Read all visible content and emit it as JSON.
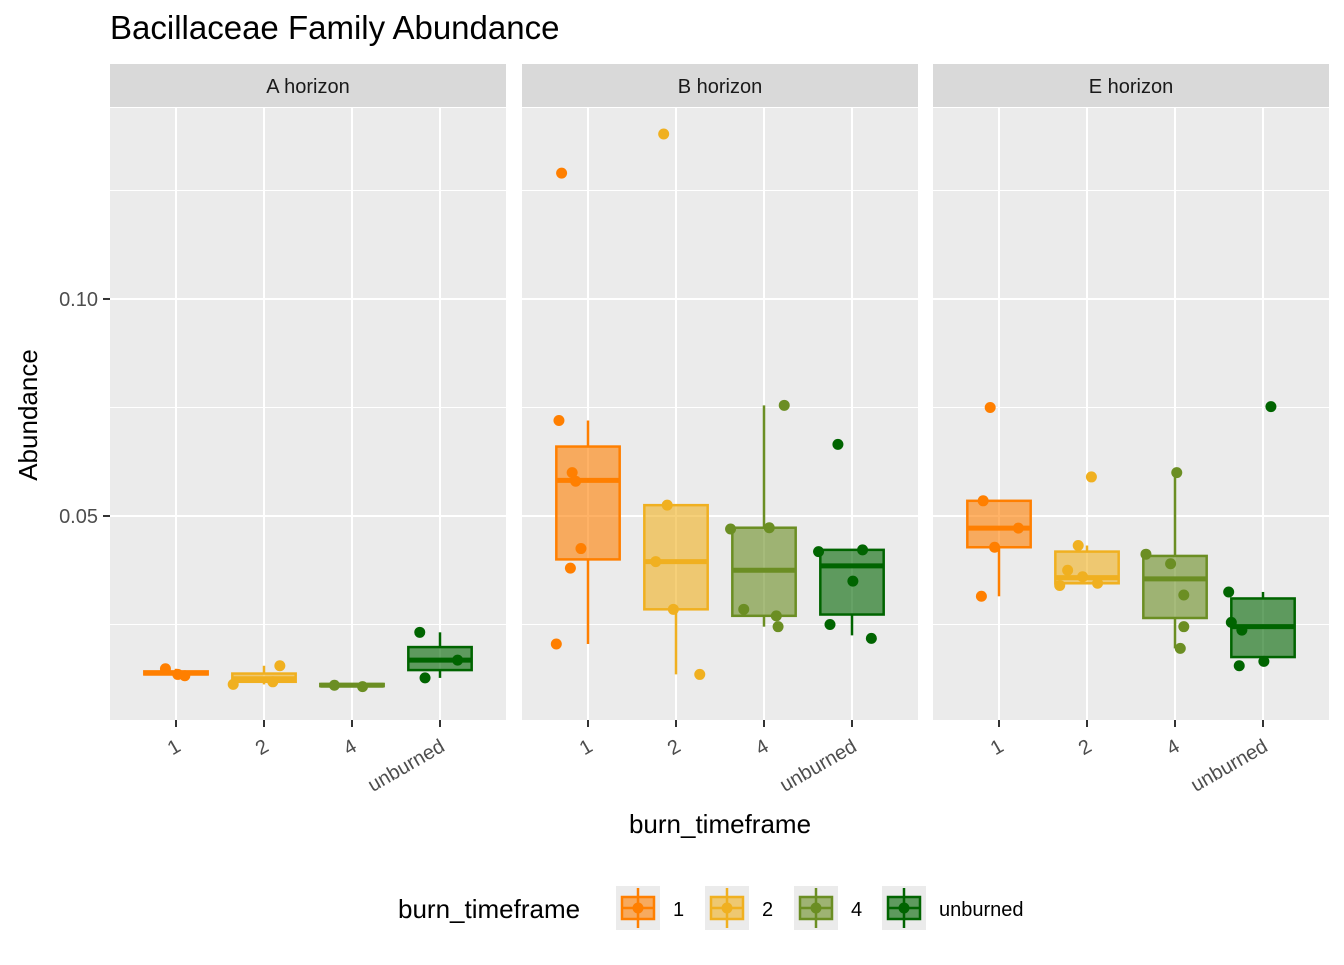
{
  "chart_data": {
    "type": "boxplot",
    "title": "Bacillaceae Family Abundance",
    "xlabel": "burn_timeframe",
    "ylabel": "Abundance",
    "ylim": [
      0.003,
      0.144
    ],
    "y_ticks": [
      0.05,
      0.1
    ],
    "y_tick_labels": [
      "0.05",
      "0.10"
    ],
    "categories": [
      "1",
      "2",
      "4",
      "unburned"
    ],
    "colors": {
      "1": "#ff7f00",
      "2": "#f0b020",
      "4": "#6b8e23",
      "unburned": "#006400"
    },
    "legend": {
      "title": "burn_timeframe",
      "position": "bottom",
      "entries": [
        "1",
        "2",
        "4",
        "unburned"
      ]
    },
    "grid": true,
    "panels": [
      {
        "name": "A horizon",
        "boxes": [
          {
            "category": "1",
            "q1": 0.0135,
            "median": 0.0138,
            "q3": 0.0142,
            "whisker_low": 0.013,
            "whisker_high": 0.0148
          },
          {
            "category": "2",
            "q1": 0.0118,
            "median": 0.0125,
            "q3": 0.0137,
            "whisker_low": 0.0112,
            "whisker_high": 0.0155
          },
          {
            "category": "4",
            "q1": 0.0108,
            "median": 0.011,
            "q3": 0.0113,
            "whisker_low": 0.0105,
            "whisker_high": 0.0115
          },
          {
            "category": "unburned",
            "q1": 0.0145,
            "median": 0.0168,
            "q3": 0.0198,
            "whisker_low": 0.0127,
            "whisker_high": 0.0232
          }
        ],
        "points": [
          {
            "category": "1",
            "y": 0.0148,
            "jitter": -0.12
          },
          {
            "category": "1",
            "y": 0.0135,
            "jitter": 0.02
          },
          {
            "category": "1",
            "y": 0.0132,
            "jitter": 0.1
          },
          {
            "category": "2",
            "y": 0.0112,
            "jitter": -0.35
          },
          {
            "category": "2",
            "y": 0.0118,
            "jitter": 0.1
          },
          {
            "category": "2",
            "y": 0.0155,
            "jitter": 0.18
          },
          {
            "category": "4",
            "y": 0.011,
            "jitter": -0.2
          },
          {
            "category": "4",
            "y": 0.0107,
            "jitter": 0.12
          },
          {
            "category": "unburned",
            "y": 0.0232,
            "jitter": -0.23
          },
          {
            "category": "unburned",
            "y": 0.0127,
            "jitter": -0.17
          },
          {
            "category": "unburned",
            "y": 0.0168,
            "jitter": 0.2
          }
        ]
      },
      {
        "name": "B horizon",
        "boxes": [
          {
            "category": "1",
            "q1": 0.04,
            "median": 0.0582,
            "q3": 0.066,
            "whisker_low": 0.0205,
            "whisker_high": 0.072
          },
          {
            "category": "2",
            "q1": 0.0285,
            "median": 0.0395,
            "q3": 0.0525,
            "whisker_low": 0.0135,
            "whisker_high": 0.0525
          },
          {
            "category": "4",
            "q1": 0.027,
            "median": 0.0375,
            "q3": 0.0473,
            "whisker_low": 0.0245,
            "whisker_high": 0.0755
          },
          {
            "category": "unburned",
            "q1": 0.0273,
            "median": 0.0385,
            "q3": 0.0422,
            "whisker_low": 0.0225,
            "whisker_high": 0.0422
          }
        ],
        "points": [
          {
            "category": "1",
            "y": 0.129,
            "jitter": -0.3
          },
          {
            "category": "1",
            "y": 0.072,
            "jitter": -0.33
          },
          {
            "category": "1",
            "y": 0.06,
            "jitter": -0.18
          },
          {
            "category": "1",
            "y": 0.058,
            "jitter": -0.14
          },
          {
            "category": "1",
            "y": 0.0425,
            "jitter": -0.08
          },
          {
            "category": "1",
            "y": 0.038,
            "jitter": -0.2
          },
          {
            "category": "1",
            "y": 0.0205,
            "jitter": -0.36
          },
          {
            "category": "2",
            "y": 0.138,
            "jitter": -0.14
          },
          {
            "category": "2",
            "y": 0.0525,
            "jitter": -0.1
          },
          {
            "category": "2",
            "y": 0.0395,
            "jitter": -0.23
          },
          {
            "category": "2",
            "y": 0.0285,
            "jitter": -0.03
          },
          {
            "category": "2",
            "y": 0.0135,
            "jitter": 0.27
          },
          {
            "category": "4",
            "y": 0.0755,
            "jitter": 0.23
          },
          {
            "category": "4",
            "y": 0.047,
            "jitter": -0.38
          },
          {
            "category": "4",
            "y": 0.0473,
            "jitter": 0.06
          },
          {
            "category": "4",
            "y": 0.0285,
            "jitter": -0.23
          },
          {
            "category": "4",
            "y": 0.027,
            "jitter": 0.14
          },
          {
            "category": "4",
            "y": 0.0245,
            "jitter": 0.16
          },
          {
            "category": "unburned",
            "y": 0.0665,
            "jitter": -0.16
          },
          {
            "category": "unburned",
            "y": 0.0418,
            "jitter": -0.38
          },
          {
            "category": "unburned",
            "y": 0.0422,
            "jitter": 0.12
          },
          {
            "category": "unburned",
            "y": 0.035,
            "jitter": 0.01
          },
          {
            "category": "unburned",
            "y": 0.025,
            "jitter": -0.25
          },
          {
            "category": "unburned",
            "y": 0.0218,
            "jitter": 0.22
          }
        ]
      },
      {
        "name": "E horizon",
        "boxes": [
          {
            "category": "1",
            "q1": 0.0428,
            "median": 0.0472,
            "q3": 0.0535,
            "whisker_low": 0.0315,
            "whisker_high": 0.0535
          },
          {
            "category": "2",
            "q1": 0.0345,
            "median": 0.0358,
            "q3": 0.0418,
            "whisker_low": 0.0345,
            "whisker_high": 0.0432
          },
          {
            "category": "4",
            "q1": 0.0265,
            "median": 0.0355,
            "q3": 0.0408,
            "whisker_low": 0.0195,
            "whisker_high": 0.06
          },
          {
            "category": "unburned",
            "q1": 0.0175,
            "median": 0.0245,
            "q3": 0.031,
            "whisker_low": 0.0175,
            "whisker_high": 0.0325
          }
        ],
        "points": [
          {
            "category": "1",
            "y": 0.075,
            "jitter": -0.1
          },
          {
            "category": "1",
            "y": 0.0535,
            "jitter": -0.18
          },
          {
            "category": "1",
            "y": 0.0472,
            "jitter": 0.22
          },
          {
            "category": "1",
            "y": 0.0428,
            "jitter": -0.05
          },
          {
            "category": "1",
            "y": 0.0315,
            "jitter": -0.2
          },
          {
            "category": "2",
            "y": 0.059,
            "jitter": 0.05
          },
          {
            "category": "2",
            "y": 0.0432,
            "jitter": -0.1
          },
          {
            "category": "2",
            "y": 0.0375,
            "jitter": -0.22
          },
          {
            "category": "2",
            "y": 0.036,
            "jitter": -0.05
          },
          {
            "category": "2",
            "y": 0.0345,
            "jitter": 0.12
          },
          {
            "category": "2",
            "y": 0.034,
            "jitter": -0.31
          },
          {
            "category": "4",
            "y": 0.06,
            "jitter": 0.02
          },
          {
            "category": "4",
            "y": 0.0412,
            "jitter": -0.33
          },
          {
            "category": "4",
            "y": 0.039,
            "jitter": -0.05
          },
          {
            "category": "4",
            "y": 0.0318,
            "jitter": 0.1
          },
          {
            "category": "4",
            "y": 0.0245,
            "jitter": 0.1
          },
          {
            "category": "4",
            "y": 0.0195,
            "jitter": 0.06
          },
          {
            "category": "unburned",
            "y": 0.0752,
            "jitter": 0.09
          },
          {
            "category": "unburned",
            "y": 0.0325,
            "jitter": -0.39
          },
          {
            "category": "unburned",
            "y": 0.0255,
            "jitter": -0.36
          },
          {
            "category": "unburned",
            "y": 0.0237,
            "jitter": -0.24
          },
          {
            "category": "unburned",
            "y": 0.0165,
            "jitter": 0.01
          },
          {
            "category": "unburned",
            "y": 0.0155,
            "jitter": -0.27
          }
        ]
      }
    ]
  }
}
